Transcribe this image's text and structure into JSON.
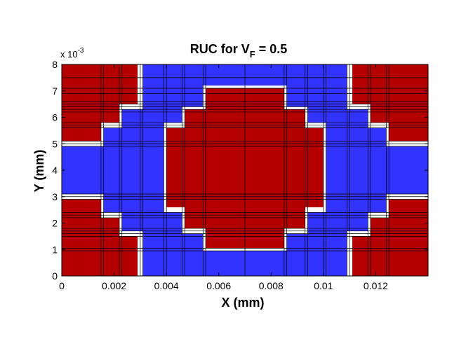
{
  "chart_data": {
    "type": "heatmap",
    "title": {
      "prefix": "RUC for V",
      "subscript": "F",
      "suffix": " = 0.5"
    },
    "xlabel": "X (mm)",
    "ylabel": "Y (mm)",
    "xlim": [
      0,
      0.014
    ],
    "ylim": [
      0,
      0.008
    ],
    "x_ticks": [
      0,
      0.002,
      0.004,
      0.006,
      0.008,
      0.01,
      0.012
    ],
    "x_tick_labels": [
      "0",
      "0.002",
      "0.004",
      "0.006",
      "0.008",
      "0.01",
      "0.012"
    ],
    "y_ticks": [
      0,
      1,
      2,
      3,
      4,
      5,
      6,
      7,
      8
    ],
    "y_tick_labels": [
      "0",
      "1",
      "2",
      "3",
      "4",
      "5",
      "6",
      "7",
      "8"
    ],
    "y_exponent": {
      "base": "x 10",
      "power": "-3"
    },
    "colors": {
      "fiber": "#b40000",
      "matrix": "#3333ff",
      "separator": "#ffffff",
      "gridline": "#000000"
    },
    "column_boundaries": [
      0,
      0.0015,
      0.0016,
      0.0022,
      0.0023,
      0.003,
      0.0031,
      0.0039,
      0.004,
      0.0046,
      0.0047,
      0.0054,
      0.0055,
      0.007,
      0.0085,
      0.0086,
      0.0093,
      0.0094,
      0.01,
      0.0101,
      0.0109,
      0.011,
      0.0117,
      0.0118,
      0.0124,
      0.0125,
      0.014
    ],
    "row_boundaries": [
      0,
      0.00095,
      0.00105,
      0.0015,
      0.0016,
      0.0017,
      0.0018,
      0.0022,
      0.0023,
      0.0024,
      0.0029,
      0.003,
      0.0031,
      0.0049,
      0.005,
      0.0051,
      0.0056,
      0.0057,
      0.0058,
      0.0062,
      0.0063,
      0.0064,
      0.0065,
      0.0066,
      0.0069,
      0.0071,
      0.0075,
      0.008
    ],
    "regions": [
      {
        "material": "matrix",
        "rects": [
          [
            0.003,
            0.011,
            0,
            0.008
          ]
        ]
      },
      {
        "material": "matrix",
        "rects": [
          [
            0.0016,
            0.0124,
            0.0016,
            0.0064
          ]
        ]
      },
      {
        "material": "matrix",
        "rects": [
          [
            0,
            0.014,
            0.0031,
            0.0049
          ]
        ]
      },
      {
        "material": "fiber",
        "rects": [
          [
            0,
            0.0029,
            0,
            0.0015
          ],
          [
            0,
            0.0022,
            0,
            0.0023
          ],
          [
            0,
            0.0015,
            0,
            0.0029
          ],
          [
            0,
            0.0029,
            0.0065,
            0.008
          ],
          [
            0,
            0.0022,
            0.0057,
            0.008
          ],
          [
            0,
            0.0015,
            0.0051,
            0.008
          ],
          [
            0.0111,
            0.014,
            0,
            0.0015
          ],
          [
            0.0118,
            0.014,
            0,
            0.0023
          ],
          [
            0.0125,
            0.014,
            0,
            0.0029
          ],
          [
            0.0111,
            0.014,
            0.0065,
            0.008
          ],
          [
            0.0118,
            0.014,
            0.0057,
            0.008
          ],
          [
            0.0125,
            0.014,
            0.0051,
            0.008
          ]
        ]
      },
      {
        "material": "fiber",
        "rects": [
          [
            0.0055,
            0.0085,
            0.00105,
            0.0071
          ],
          [
            0.0047,
            0.0093,
            0.0017,
            0.0063
          ],
          [
            0.004,
            0.01,
            0.0025,
            0.0056
          ]
        ]
      }
    ],
    "separators": [
      [
        0.0029,
        0.0031,
        0,
        0.0015
      ],
      [
        0.0022,
        0.0031,
        0.0015,
        0.0017
      ],
      [
        0.0022,
        0.0023,
        0.0015,
        0.0023
      ],
      [
        0.0015,
        0.0023,
        0.0022,
        0.0024
      ],
      [
        0.0015,
        0.0016,
        0.0022,
        0.003
      ],
      [
        0,
        0.0016,
        0.0029,
        0.0031
      ],
      [
        0.0029,
        0.0031,
        0.0065,
        0.008
      ],
      [
        0.0022,
        0.0031,
        0.0063,
        0.0065
      ],
      [
        0.0022,
        0.0023,
        0.0057,
        0.0065
      ],
      [
        0.0015,
        0.0023,
        0.0056,
        0.0058
      ],
      [
        0.0015,
        0.0016,
        0.005,
        0.0058
      ],
      [
        0,
        0.0016,
        0.0049,
        0.0051
      ],
      [
        0.0109,
        0.0111,
        0,
        0.0015
      ],
      [
        0.0109,
        0.0118,
        0.0015,
        0.0017
      ],
      [
        0.0117,
        0.0118,
        0.0015,
        0.0023
      ],
      [
        0.0117,
        0.0125,
        0.0022,
        0.0024
      ],
      [
        0.0124,
        0.0125,
        0.0022,
        0.003
      ],
      [
        0.0124,
        0.014,
        0.0029,
        0.0031
      ],
      [
        0.0109,
        0.0111,
        0.0065,
        0.008
      ],
      [
        0.0109,
        0.0118,
        0.0063,
        0.0065
      ],
      [
        0.0117,
        0.0118,
        0.0057,
        0.0065
      ],
      [
        0.0117,
        0.0125,
        0.0056,
        0.0058
      ],
      [
        0.0124,
        0.0125,
        0.005,
        0.0058
      ],
      [
        0.0124,
        0.014,
        0.0049,
        0.0051
      ],
      [
        0.0054,
        0.0086,
        0.00095,
        0.00105
      ],
      [
        0.0054,
        0.0055,
        0.00095,
        0.0018
      ],
      [
        0.0085,
        0.0086,
        0.00095,
        0.0018
      ],
      [
        0.0046,
        0.0055,
        0.0016,
        0.0018
      ],
      [
        0.0085,
        0.0094,
        0.0016,
        0.0018
      ],
      [
        0.0046,
        0.0047,
        0.0016,
        0.0025
      ],
      [
        0.0093,
        0.0094,
        0.0016,
        0.0025
      ],
      [
        0.0039,
        0.0047,
        0.0024,
        0.0026
      ],
      [
        0.0093,
        0.0101,
        0.0024,
        0.0026
      ],
      [
        0.0039,
        0.004,
        0.0024,
        0.0057
      ],
      [
        0.01,
        0.0101,
        0.0024,
        0.0057
      ],
      [
        0.0039,
        0.0047,
        0.0056,
        0.0058
      ],
      [
        0.0093,
        0.0101,
        0.0056,
        0.0058
      ],
      [
        0.0046,
        0.0047,
        0.0056,
        0.0064
      ],
      [
        0.0093,
        0.0094,
        0.0056,
        0.0064
      ],
      [
        0.0046,
        0.0055,
        0.0063,
        0.0064
      ],
      [
        0.0085,
        0.0094,
        0.0063,
        0.0064
      ],
      [
        0.0054,
        0.0055,
        0.0063,
        0.0072
      ],
      [
        0.0085,
        0.0086,
        0.0063,
        0.0072
      ],
      [
        0.0054,
        0.0086,
        0.0071,
        0.0072
      ]
    ]
  }
}
